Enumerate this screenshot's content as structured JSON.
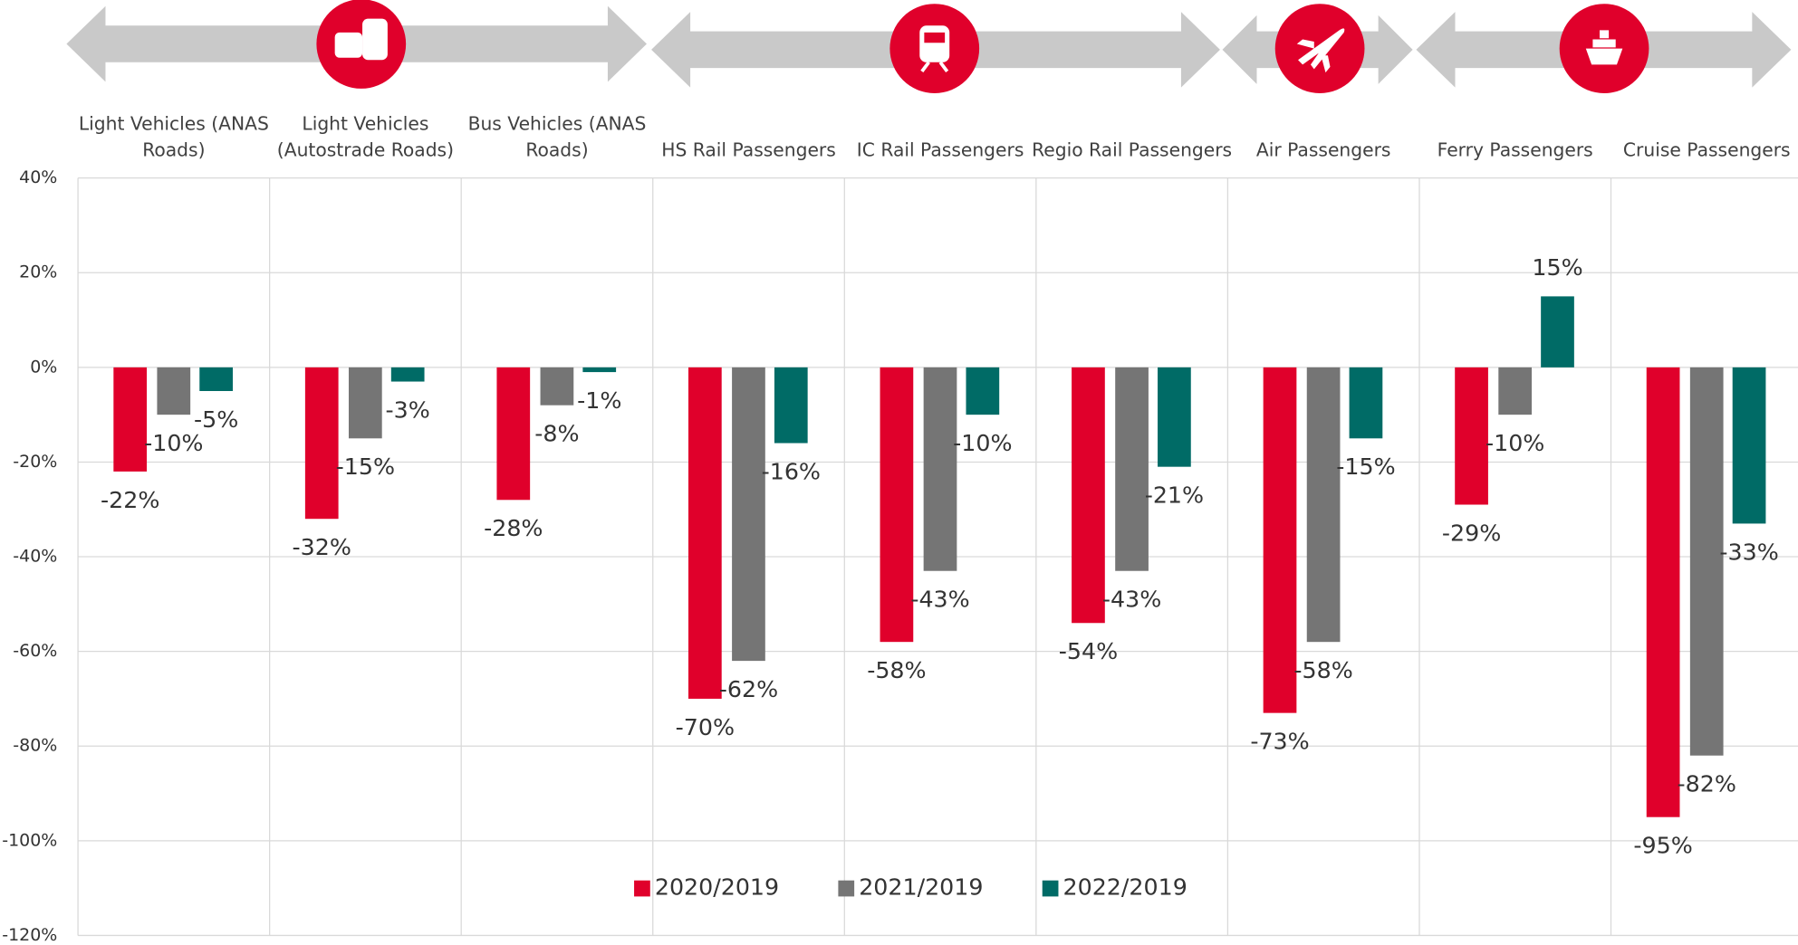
{
  "chart_data": {
    "type": "bar",
    "categories": [
      "Light Vehicles (ANAS Roads)",
      "Light Vehicles (Autostrade Roads)",
      "Bus Vehicles (ANAS Roads)",
      "HS Rail Passengers",
      "IC Rail Passengers",
      "Regio Rail Passengers",
      "Air Passengers",
      "Ferry Passengers",
      "Cruise Passengers"
    ],
    "series": [
      {
        "name": "2020/2019",
        "color": "#e0002b",
        "values": [
          -22,
          -32,
          -28,
          -70,
          -58,
          -54,
          -73,
          -29,
          -95
        ],
        "value_labels": [
          "-22%",
          "-32%",
          "-28%",
          "-70%",
          "-58%",
          "-54%",
          "-73%",
          "-29%",
          "-95%"
        ]
      },
      {
        "name": "2021/2019",
        "color": "#757575",
        "values": [
          -10,
          -15,
          -8,
          -62,
          -43,
          -43,
          -58,
          -10,
          -82
        ],
        "value_labels": [
          "-10%",
          "-15%",
          "-8%",
          "-62%",
          "-43%",
          "-43%",
          "-58%",
          "-10%",
          "-82%"
        ]
      },
      {
        "name": "2022/2019",
        "color": "#006b66",
        "values": [
          -5,
          -3,
          -1,
          -16,
          -10,
          -21,
          -15,
          15,
          -33
        ],
        "value_labels": [
          "-5%",
          "-3%",
          "-1%",
          "-16%",
          "-10%",
          "-21%",
          "-15%",
          "15%",
          "-33%"
        ]
      }
    ],
    "ylim": [
      -120,
      40
    ],
    "yticks": [
      {
        "value": 40,
        "label": "40%"
      },
      {
        "value": 20,
        "label": "20%"
      },
      {
        "value": 0,
        "label": "0%"
      },
      {
        "value": -20,
        "label": "-20%"
      },
      {
        "value": -40,
        "label": "-40%"
      },
      {
        "value": -60,
        "label": "-60%"
      },
      {
        "value": -80,
        "label": "-80%"
      },
      {
        "value": -100,
        "label": "-100%"
      },
      {
        "value": -120,
        "label": "-120%"
      }
    ],
    "grid": true,
    "legend": "bottom"
  }
}
